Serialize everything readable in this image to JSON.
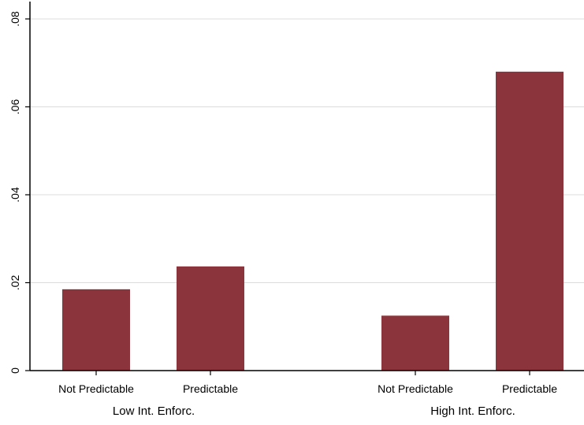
{
  "chart_data": {
    "type": "bar",
    "title": "",
    "xlabel": "",
    "ylabel": "",
    "ylim": [
      0,
      0.08
    ],
    "yticks": [
      {
        "value": 0,
        "label": "0"
      },
      {
        "value": 0.02,
        "label": ".02"
      },
      {
        "value": 0.04,
        "label": ".04"
      },
      {
        "value": 0.06,
        "label": ".06"
      },
      {
        "value": 0.08,
        "label": ".08"
      }
    ],
    "grid": true,
    "bar_color": "#8b343c",
    "groups": [
      {
        "label": "Low Int. Enforc.",
        "bars": [
          {
            "label": "Not Predictable",
            "value": 0.0185
          },
          {
            "label": "Predictable",
            "value": 0.0237
          }
        ]
      },
      {
        "label": "High Int. Enforc.",
        "bars": [
          {
            "label": "Not Predictable",
            "value": 0.0125
          },
          {
            "label": "Predictable",
            "value": 0.068
          }
        ]
      }
    ]
  }
}
